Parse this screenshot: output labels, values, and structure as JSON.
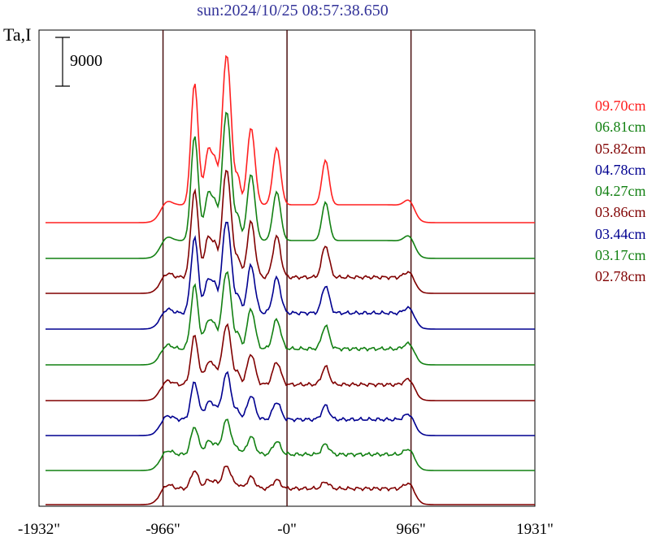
{
  "title": "sun:2024/10/25 08:57:38.650",
  "ylabel": "Ta,I",
  "scale_bar_label": "9000",
  "colors": {
    "red": "#ff2020",
    "green": "#128012",
    "darkred": "#800000",
    "blue": "#000090",
    "axis": "#000000",
    "vline": "#4a1010"
  },
  "chart_data": {
    "type": "line",
    "title": "sun:2024/10/25 08:57:38.650",
    "ylabel": "Ta,I",
    "xlabel": "",
    "x_ticks": [
      "-1932\"",
      "-966\"",
      "-0\"",
      "966\"",
      "1931\""
    ],
    "x_tick_values": [
      -1932,
      -966,
      0,
      966,
      1931
    ],
    "xlim": [
      -1932,
      1931
    ],
    "vertical_lines": [
      -966,
      0,
      966
    ],
    "scale_bar": 9000,
    "legend_position": "right",
    "series": [
      {
        "name": "09.70cm",
        "color": "#ff2020"
      },
      {
        "name": "06.81cm",
        "color": "#128012"
      },
      {
        "name": "05.82cm",
        "color": "#800000"
      },
      {
        "name": "04.78cm",
        "color": "#000090"
      },
      {
        "name": "04.27cm",
        "color": "#128012"
      },
      {
        "name": "03.86cm",
        "color": "#800000"
      },
      {
        "name": "03.44cm",
        "color": "#000090"
      },
      {
        "name": "03.17cm",
        "color": "#128012"
      },
      {
        "name": "02.78cm",
        "color": "#800000"
      }
    ]
  }
}
